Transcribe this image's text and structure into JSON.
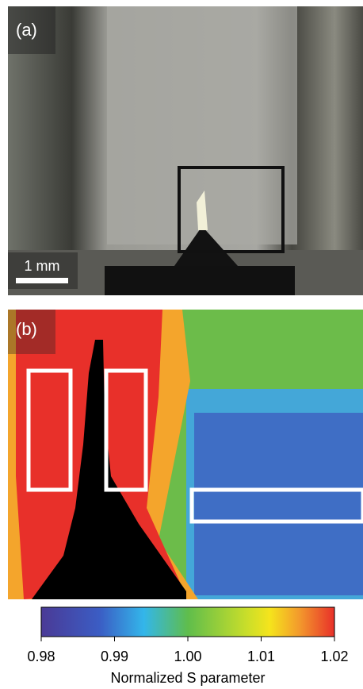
{
  "panels": [
    {
      "label": "(a)",
      "scale_bar": "1 mm"
    },
    {
      "label": "(b)"
    }
  ],
  "colorbar": {
    "label": "Normalized S parameter",
    "lim": [
      0.98,
      1.02
    ],
    "ticks": [
      0.98,
      0.99,
      {
        "value": 1,
        "label": "1.00"
      },
      1.01,
      1.02
    ]
  }
}
